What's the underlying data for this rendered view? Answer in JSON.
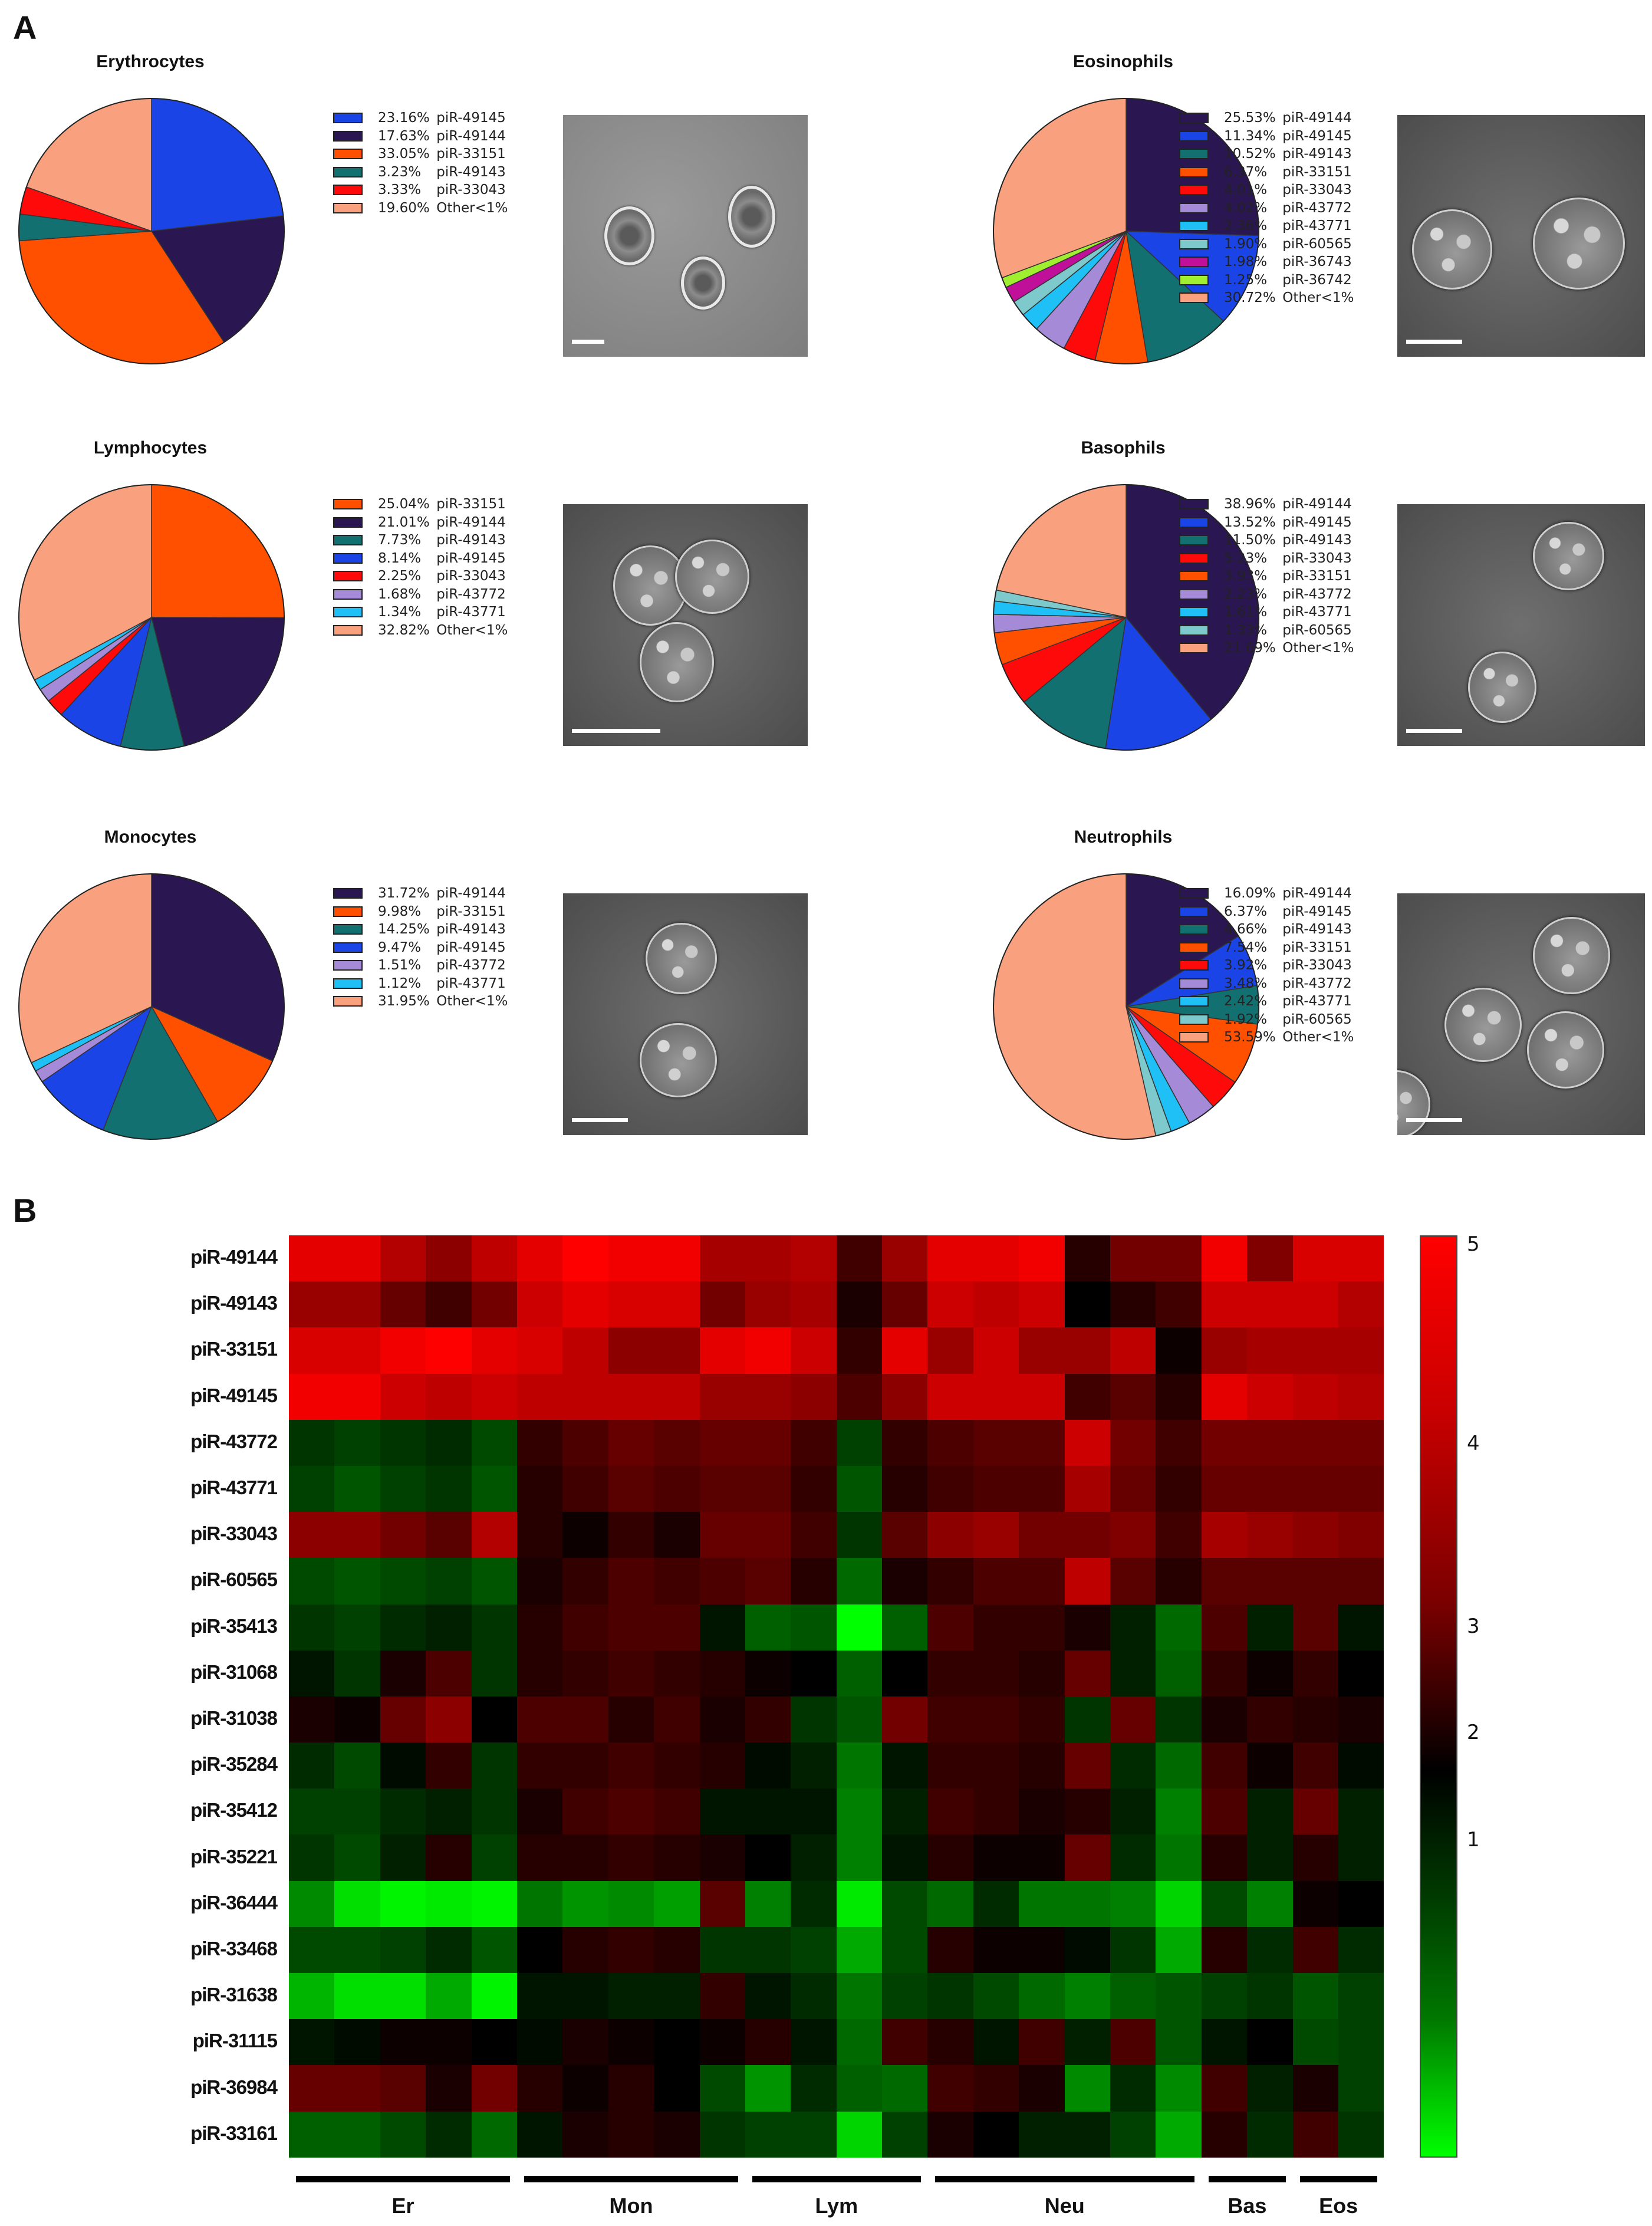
{
  "panel_a": {
    "letter": "A",
    "cells": [
      {
        "title": "Erythrocytes",
        "legend": [
          {
            "pct": "23.16%",
            "label": "piR-49145",
            "color": "#1a44e6"
          },
          {
            "pct": "17.63%",
            "label": "piR-49144",
            "color": "#2a1650"
          },
          {
            "pct": "33.05%",
            "label": "piR-33151",
            "color": "#ff5000"
          },
          {
            "pct": "3.23%",
            "label": "piR-49143",
            "color": "#137070"
          },
          {
            "pct": "3.33%",
            "label": "piR-33043",
            "color": "#ff0a0a"
          },
          {
            "pct": "19.60%",
            "label": "Other<1%",
            "color": "#f9a07e"
          }
        ]
      },
      {
        "title": "Eosinophils",
        "legend": [
          {
            "pct": "25.53%",
            "label": "piR-49144",
            "color": "#2a1650"
          },
          {
            "pct": "11.34%",
            "label": "piR-49145",
            "color": "#1a44e6"
          },
          {
            "pct": "10.52%",
            "label": "piR-49143",
            "color": "#137070"
          },
          {
            "pct": "6.37%",
            "label": "piR-33151",
            "color": "#ff5000"
          },
          {
            "pct": "4.01%",
            "label": "piR-33043",
            "color": "#ff0a0a"
          },
          {
            "pct": "4.02%",
            "label": "piR-43772",
            "color": "#a58ad8"
          },
          {
            "pct": "2.36%",
            "label": "piR-43771",
            "color": "#1ec0f5"
          },
          {
            "pct": "1.90%",
            "label": "piR-60565",
            "color": "#7ec9cc"
          },
          {
            "pct": "1.98%",
            "label": "piR-36743",
            "color": "#c0109a"
          },
          {
            "pct": "1.25%",
            "label": "piR-36742",
            "color": "#a0ee30"
          },
          {
            "pct": "30.72%",
            "label": "Other<1%",
            "color": "#f9a07e"
          }
        ]
      },
      {
        "title": "Lymphocytes",
        "legend": [
          {
            "pct": "25.04%",
            "label": "piR-33151",
            "color": "#ff5000"
          },
          {
            "pct": "21.01%",
            "label": "piR-49144",
            "color": "#2a1650"
          },
          {
            "pct": "7.73%",
            "label": "piR-49143",
            "color": "#137070"
          },
          {
            "pct": "8.14%",
            "label": "piR-49145",
            "color": "#1a44e6"
          },
          {
            "pct": "2.25%",
            "label": "piR-33043",
            "color": "#ff0a0a"
          },
          {
            "pct": "1.68%",
            "label": "piR-43772",
            "color": "#a58ad8"
          },
          {
            "pct": "1.34%",
            "label": "piR-43771",
            "color": "#1ec0f5"
          },
          {
            "pct": "32.82%",
            "label": "Other<1%",
            "color": "#f9a07e"
          }
        ]
      },
      {
        "title": "Basophils",
        "legend": [
          {
            "pct": "38.96%",
            "label": "piR-49144",
            "color": "#2a1650"
          },
          {
            "pct": "13.52%",
            "label": "piR-49145",
            "color": "#1a44e6"
          },
          {
            "pct": "11.50%",
            "label": "piR-49143",
            "color": "#137070"
          },
          {
            "pct": "5.23%",
            "label": "piR-33043",
            "color": "#ff0a0a"
          },
          {
            "pct": "3.93%",
            "label": "piR-33151",
            "color": "#ff5000"
          },
          {
            "pct": "2.23%",
            "label": "piR-43772",
            "color": "#a58ad8"
          },
          {
            "pct": "1.61%",
            "label": "piR-43771",
            "color": "#1ec0f5"
          },
          {
            "pct": "1.33%",
            "label": "piR-60565",
            "color": "#7ec9cc"
          },
          {
            "pct": "21.69%",
            "label": "Other<1%",
            "color": "#f9a07e"
          }
        ]
      },
      {
        "title": "Monocytes",
        "legend": [
          {
            "pct": "31.72%",
            "label": "piR-49144",
            "color": "#2a1650"
          },
          {
            "pct": "9.98%",
            "label": "piR-33151",
            "color": "#ff5000"
          },
          {
            "pct": "14.25%",
            "label": "piR-49143",
            "color": "#137070"
          },
          {
            "pct": "9.47%",
            "label": "piR-49145",
            "color": "#1a44e6"
          },
          {
            "pct": "1.51%",
            "label": "piR-43772",
            "color": "#a58ad8"
          },
          {
            "pct": "1.12%",
            "label": "piR-43771",
            "color": "#1ec0f5"
          },
          {
            "pct": "31.95%",
            "label": "Other<1%",
            "color": "#f9a07e"
          }
        ]
      },
      {
        "title": "Neutrophils",
        "legend": [
          {
            "pct": "16.09%",
            "label": "piR-49144",
            "color": "#2a1650"
          },
          {
            "pct": "6.37%",
            "label": "piR-49145",
            "color": "#1a44e6"
          },
          {
            "pct": "4.66%",
            "label": "piR-49143",
            "color": "#137070"
          },
          {
            "pct": "7.54%",
            "label": "piR-33151",
            "color": "#ff5000"
          },
          {
            "pct": "3.92%",
            "label": "piR-33043",
            "color": "#ff0a0a"
          },
          {
            "pct": "3.48%",
            "label": "piR-43772",
            "color": "#a58ad8"
          },
          {
            "pct": "2.42%",
            "label": "piR-43771",
            "color": "#1ec0f5"
          },
          {
            "pct": "1.92%",
            "label": "piR-60565",
            "color": "#7ec9cc"
          },
          {
            "pct": "53.59%",
            "label": "Other<1%",
            "color": "#f9a07e"
          }
        ]
      }
    ]
  },
  "panel_b": {
    "letter": "B",
    "colorbar_ticks": [
      "5",
      "4",
      "3",
      "2",
      "1"
    ],
    "groups": [
      {
        "label": "Er",
        "columns": 5
      },
      {
        "label": "Mon",
        "columns": 5
      },
      {
        "label": "Lym",
        "columns": 4
      },
      {
        "label": "Neu",
        "columns": 6
      },
      {
        "label": "Bas",
        "columns": 2
      },
      {
        "label": "Eos",
        "columns": 2
      }
    ]
  },
  "chart_data": [
    {
      "type": "pie",
      "title": "Erythrocytes",
      "categories": [
        "piR-49145",
        "piR-49144",
        "piR-33151",
        "piR-49143",
        "piR-33043",
        "Other<1%"
      ],
      "values": [
        23.16,
        17.63,
        33.05,
        3.23,
        3.33,
        19.6
      ],
      "legend_position": "right"
    },
    {
      "type": "pie",
      "title": "Eosinophils",
      "categories": [
        "piR-49144",
        "piR-49145",
        "piR-49143",
        "piR-33151",
        "piR-33043",
        "piR-43772",
        "piR-43771",
        "piR-60565",
        "piR-36743",
        "piR-36742",
        "Other<1%"
      ],
      "values": [
        25.53,
        11.34,
        10.52,
        6.37,
        4.01,
        4.02,
        2.36,
        1.9,
        1.98,
        1.25,
        30.72
      ],
      "legend_position": "right"
    },
    {
      "type": "pie",
      "title": "Lymphocytes",
      "categories": [
        "piR-33151",
        "piR-49144",
        "piR-49143",
        "piR-49145",
        "piR-33043",
        "piR-43772",
        "piR-43771",
        "Other<1%"
      ],
      "values": [
        25.04,
        21.01,
        7.73,
        8.14,
        2.25,
        1.68,
        1.34,
        32.82
      ],
      "legend_position": "right"
    },
    {
      "type": "pie",
      "title": "Basophils",
      "categories": [
        "piR-49144",
        "piR-49145",
        "piR-49143",
        "piR-33043",
        "piR-33151",
        "piR-43772",
        "piR-43771",
        "piR-60565",
        "Other<1%"
      ],
      "values": [
        38.96,
        13.52,
        11.5,
        5.23,
        3.93,
        2.23,
        1.61,
        1.33,
        21.69
      ],
      "legend_position": "right"
    },
    {
      "type": "pie",
      "title": "Monocytes",
      "categories": [
        "piR-49144",
        "piR-33151",
        "piR-49143",
        "piR-49145",
        "piR-43772",
        "piR-43771",
        "Other<1%"
      ],
      "values": [
        31.72,
        9.98,
        14.25,
        9.47,
        1.51,
        1.12,
        31.95
      ],
      "legend_position": "right"
    },
    {
      "type": "pie",
      "title": "Neutrophils",
      "categories": [
        "piR-49144",
        "piR-49145",
        "piR-49143",
        "piR-33151",
        "piR-33043",
        "piR-43772",
        "piR-43771",
        "piR-60565",
        "Other<1%"
      ],
      "values": [
        16.09,
        6.37,
        4.66,
        7.54,
        3.92,
        3.48,
        2.42,
        1.92,
        53.59
      ],
      "legend_position": "right"
    },
    {
      "type": "heatmap",
      "title": "",
      "rows": [
        "piR-49144",
        "piR-49143",
        "piR-33151",
        "piR-49145",
        "piR-43772",
        "piR-43771",
        "piR-33043",
        "piR-60565",
        "piR-35413",
        "piR-31068",
        "piR-31038",
        "piR-35284",
        "piR-35412",
        "piR-35221",
        "piR-36444",
        "piR-33468",
        "piR-31638",
        "piR-31115",
        "piR-36984",
        "piR-33161"
      ],
      "column_groups": [
        "Er",
        "Er",
        "Er",
        "Er",
        "Er",
        "Mon",
        "Mon",
        "Mon",
        "Mon",
        "Mon",
        "Lym",
        "Lym",
        "Lym",
        "Lym",
        "Neu",
        "Neu",
        "Neu",
        "Neu",
        "Neu",
        "Neu",
        "Bas",
        "Bas",
        "Eos",
        "Eos"
      ],
      "colorbar": {
        "min": 0.5,
        "max": 5.2,
        "ticks": [
          1,
          2,
          3,
          4,
          5
        ],
        "colors": [
          "#00ff00",
          "#000000",
          "#ff0000"
        ]
      },
      "values": [
        [
          4.8,
          4.8,
          4.4,
          4.1,
          4.5,
          4.8,
          5.0,
          4.9,
          4.9,
          4.3,
          4.3,
          4.4,
          3.5,
          4.2,
          4.8,
          4.8,
          4.9,
          3.3,
          3.9,
          3.9,
          4.9,
          4.0,
          4.7,
          4.7
        ],
        [
          4.2,
          4.2,
          3.8,
          3.5,
          3.9,
          4.6,
          4.8,
          4.7,
          4.7,
          3.9,
          4.2,
          4.3,
          3.2,
          3.8,
          4.6,
          4.5,
          4.6,
          3.0,
          3.3,
          3.5,
          4.6,
          4.6,
          4.6,
          4.4
        ],
        [
          4.7,
          4.7,
          4.9,
          5.0,
          4.8,
          4.7,
          4.5,
          4.1,
          4.1,
          4.8,
          4.9,
          4.6,
          3.4,
          4.8,
          4.2,
          4.6,
          4.2,
          4.2,
          4.5,
          3.1,
          4.2,
          4.3,
          4.3,
          4.3
        ],
        [
          4.9,
          4.9,
          4.6,
          4.5,
          4.6,
          4.5,
          4.5,
          4.5,
          4.5,
          4.2,
          4.2,
          4.1,
          3.6,
          4.1,
          4.6,
          4.6,
          4.6,
          3.5,
          3.7,
          3.3,
          4.8,
          4.6,
          4.5,
          4.4
        ],
        [
          2.5,
          2.4,
          2.5,
          2.6,
          2.3,
          3.4,
          3.6,
          3.8,
          3.7,
          3.8,
          3.8,
          3.5,
          2.4,
          3.4,
          3.6,
          3.7,
          3.7,
          4.6,
          3.9,
          3.5,
          3.9,
          3.9,
          3.9,
          3.9
        ],
        [
          2.4,
          2.2,
          2.4,
          2.5,
          2.2,
          3.3,
          3.5,
          3.7,
          3.6,
          3.7,
          3.7,
          3.4,
          2.2,
          3.3,
          3.5,
          3.6,
          3.6,
          4.3,
          3.8,
          3.4,
          3.8,
          3.8,
          3.8,
          3.8
        ],
        [
          4.1,
          4.1,
          3.9,
          3.7,
          4.4,
          3.3,
          3.1,
          3.4,
          3.2,
          3.8,
          3.8,
          3.5,
          2.5,
          3.7,
          4.1,
          4.2,
          3.9,
          3.9,
          4.0,
          3.5,
          4.3,
          4.2,
          4.1,
          4.0
        ],
        [
          2.3,
          2.2,
          2.3,
          2.4,
          2.2,
          3.2,
          3.4,
          3.6,
          3.5,
          3.6,
          3.7,
          3.3,
          2.0,
          3.2,
          3.4,
          3.6,
          3.6,
          4.5,
          3.7,
          3.3,
          3.7,
          3.7,
          3.7,
          3.7
        ],
        [
          2.5,
          2.4,
          2.6,
          2.7,
          2.5,
          3.3,
          3.5,
          3.6,
          3.6,
          2.8,
          2.1,
          2.2,
          0.6,
          2.1,
          3.6,
          3.4,
          3.4,
          3.2,
          2.7,
          2.0,
          3.6,
          2.7,
          3.7,
          2.8
        ],
        [
          2.8,
          2.5,
          3.2,
          3.6,
          2.5,
          3.3,
          3.4,
          3.5,
          3.4,
          3.3,
          3.1,
          3.0,
          2.1,
          3.0,
          3.4,
          3.4,
          3.3,
          3.8,
          2.7,
          2.1,
          3.4,
          3.1,
          3.4,
          3.0
        ],
        [
          3.2,
          3.1,
          3.8,
          4.1,
          3.0,
          3.6,
          3.6,
          3.3,
          3.5,
          3.2,
          3.4,
          2.5,
          2.2,
          3.9,
          3.5,
          3.5,
          3.4,
          2.5,
          3.8,
          2.5,
          3.2,
          3.4,
          3.3,
          3.2
        ],
        [
          2.6,
          2.3,
          2.9,
          3.4,
          2.5,
          3.4,
          3.4,
          3.5,
          3.4,
          3.3,
          2.9,
          2.7,
          1.9,
          2.8,
          3.4,
          3.4,
          3.3,
          3.8,
          2.6,
          2.0,
          3.5,
          3.1,
          3.5,
          2.9
        ],
        [
          2.4,
          2.4,
          2.6,
          2.7,
          2.5,
          3.2,
          3.5,
          3.6,
          3.5,
          2.8,
          2.8,
          2.8,
          1.8,
          2.7,
          3.5,
          3.4,
          3.2,
          3.3,
          2.7,
          1.8,
          3.6,
          2.7,
          3.8,
          2.7
        ],
        [
          2.5,
          2.3,
          2.7,
          3.3,
          2.4,
          3.3,
          3.3,
          3.4,
          3.3,
          3.2,
          3.0,
          2.7,
          1.8,
          2.8,
          3.3,
          3.1,
          3.1,
          3.8,
          2.6,
          1.9,
          3.3,
          2.7,
          3.3,
          2.7
        ],
        [
          1.7,
          0.9,
          0.7,
          0.8,
          0.7,
          1.9,
          1.6,
          1.7,
          1.5,
          3.7,
          1.8,
          2.6,
          0.8,
          2.3,
          2.0,
          2.6,
          1.9,
          1.9,
          1.8,
          1.0,
          2.3,
          1.8,
          3.1,
          3.0
        ],
        [
          2.3,
          2.3,
          2.4,
          2.6,
          2.2,
          3.0,
          3.3,
          3.4,
          3.3,
          2.5,
          2.5,
          2.4,
          1.4,
          2.3,
          3.3,
          3.1,
          3.1,
          2.9,
          2.5,
          1.4,
          3.3,
          2.6,
          3.5,
          2.6
        ],
        [
          1.3,
          0.9,
          0.9,
          1.4,
          0.7,
          2.8,
          2.8,
          2.7,
          2.7,
          3.4,
          2.8,
          2.6,
          1.9,
          2.4,
          2.5,
          2.3,
          2.0,
          1.8,
          2.1,
          2.2,
          2.4,
          2.5,
          2.2,
          2.4
        ],
        [
          2.8,
          2.9,
          3.1,
          3.1,
          3.0,
          2.9,
          3.2,
          3.1,
          3.0,
          3.1,
          3.3,
          2.8,
          2.0,
          3.5,
          3.3,
          2.8,
          3.5,
          2.7,
          3.6,
          2.2,
          2.8,
          3.0,
          2.3,
          2.4
        ],
        [
          3.8,
          3.8,
          3.7,
          3.2,
          3.9,
          3.3,
          3.1,
          3.3,
          3.0,
          2.3,
          1.6,
          2.6,
          2.1,
          2.0,
          3.5,
          3.4,
          3.2,
          1.7,
          2.6,
          1.7,
          3.5,
          2.7,
          3.2,
          2.4
        ],
        [
          2.1,
          2.1,
          2.3,
          2.6,
          2.0,
          2.8,
          3.2,
          3.3,
          3.2,
          2.5,
          2.4,
          2.4,
          1.0,
          2.4,
          3.2,
          3.0,
          2.7,
          2.7,
          2.4,
          1.4,
          3.3,
          2.6,
          3.5,
          2.5
        ]
      ]
    }
  ]
}
